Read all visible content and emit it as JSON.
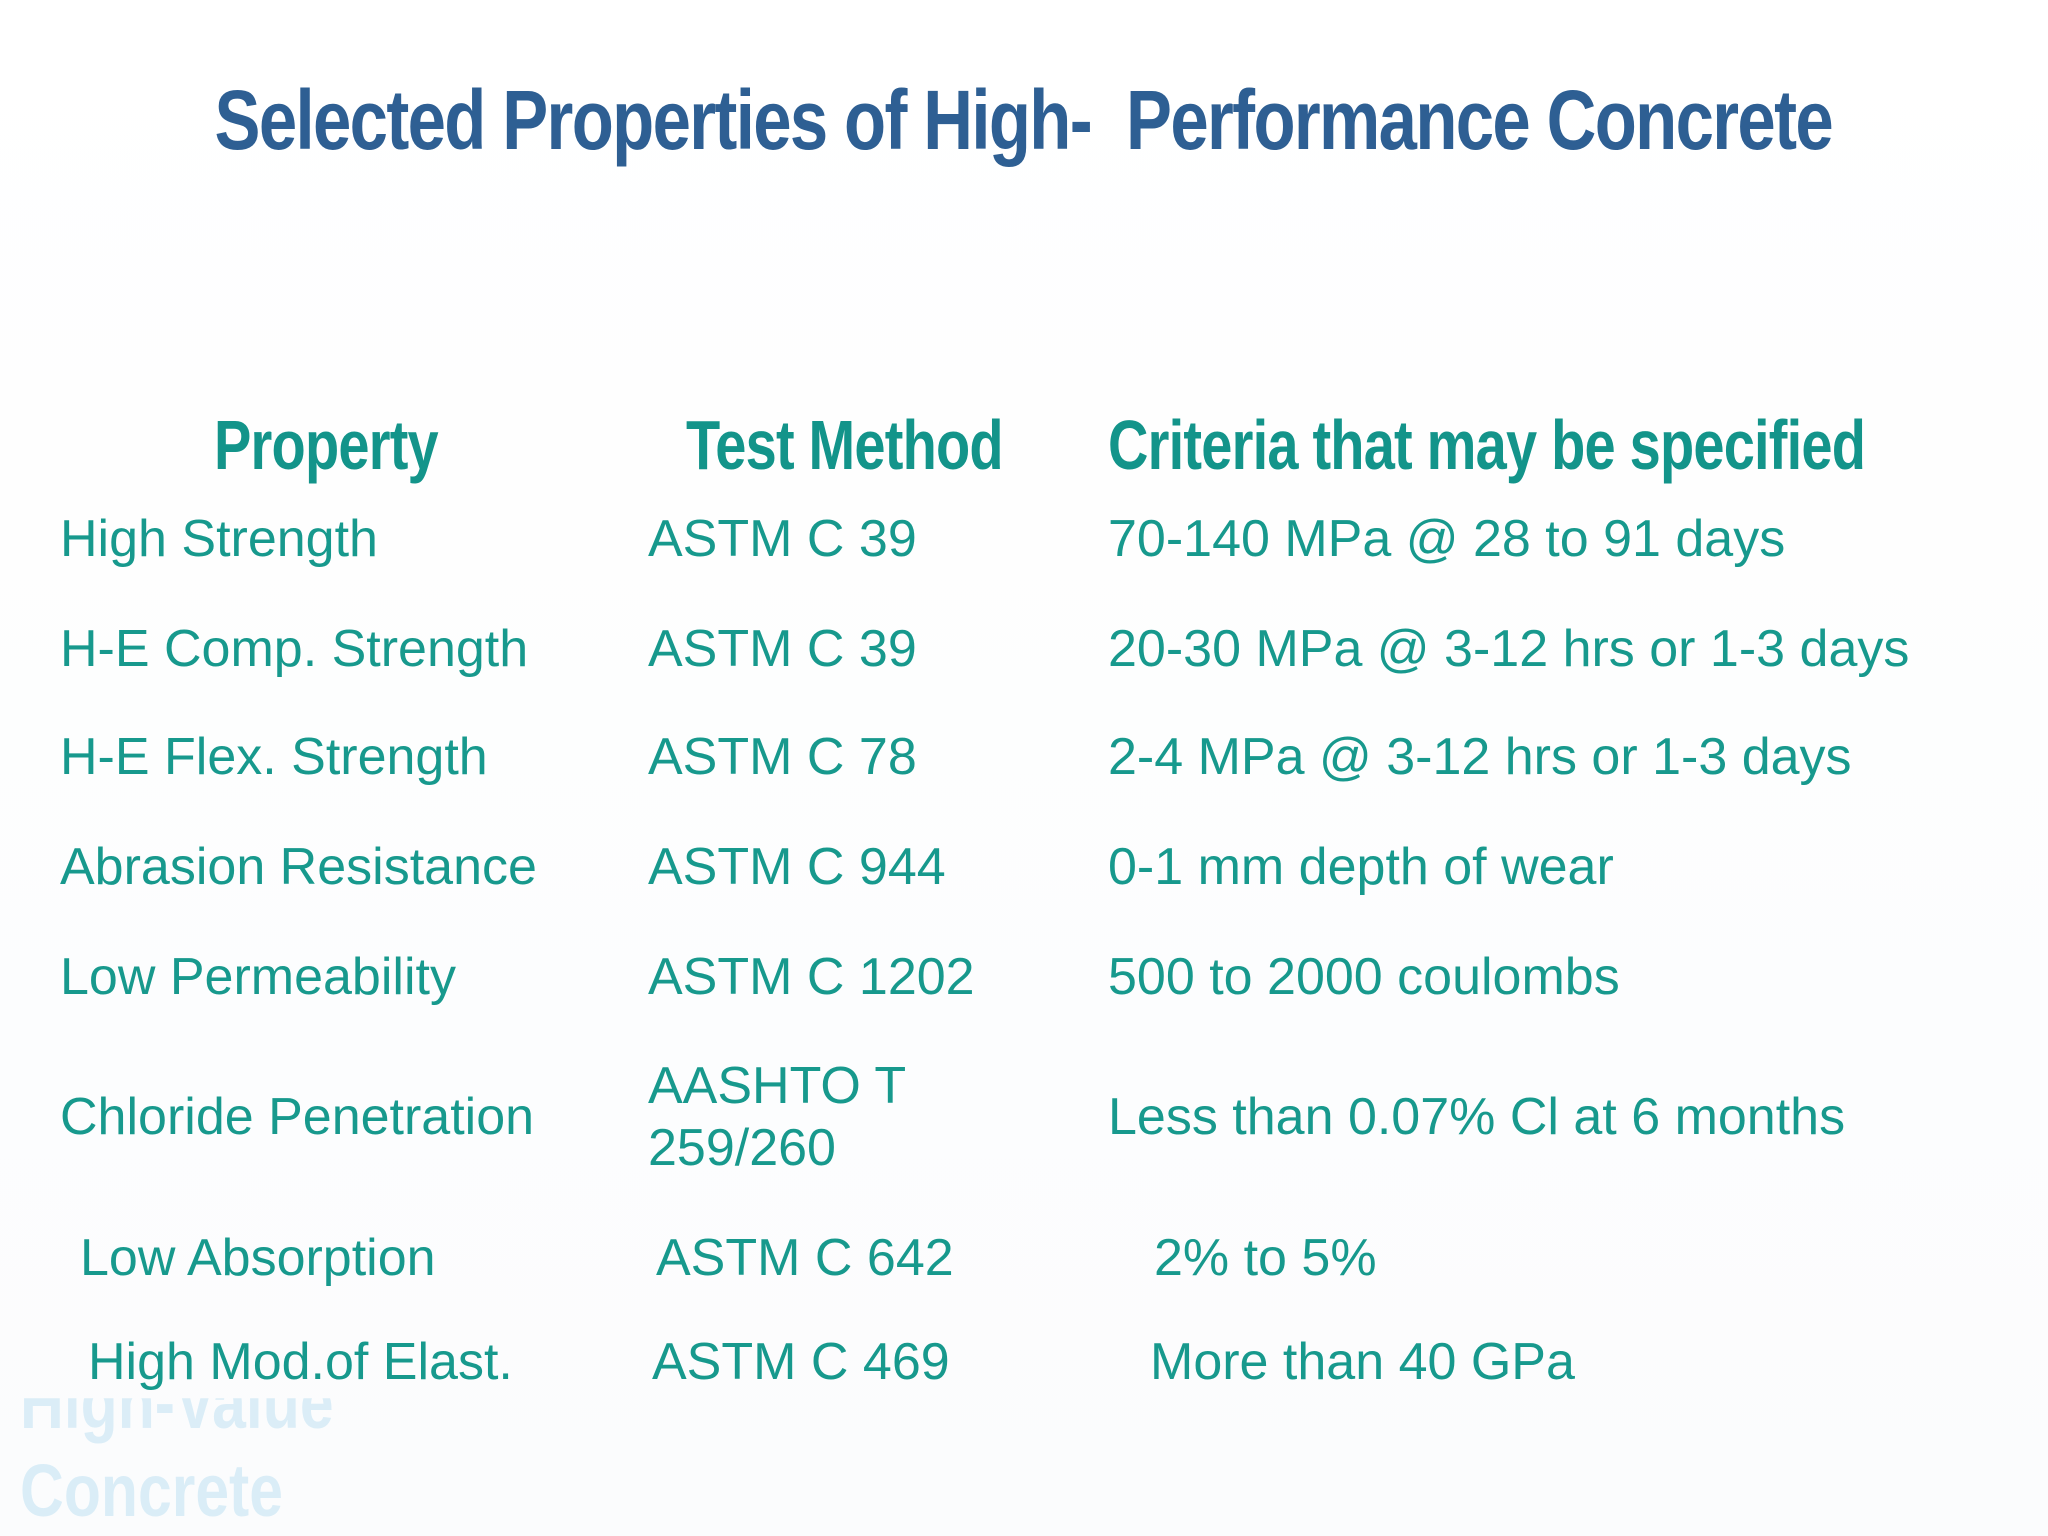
{
  "title": "Selected Properties of High-  Performance Concrete",
  "table": {
    "headers": [
      "Property",
      "Test Method",
      "Criteria that may be specified"
    ],
    "rows": [
      [
        "High Strength",
        "ASTM C 39",
        "70-140 MPa @ 28 to 91 days"
      ],
      [
        "H-E Comp. Strength",
        "ASTM C 39",
        "20-30 MPa @ 3-12 hrs or 1-3 days"
      ],
      [
        "H-E Flex. Strength",
        "ASTM C 78",
        "2-4 MPa @ 3-12 hrs or 1-3 days"
      ],
      [
        "Abrasion Resistance",
        "ASTM C 944",
        "0-1 mm depth of wear"
      ],
      [
        "Low Permeability",
        "ASTM C 1202",
        "500 to 2000 coulombs"
      ],
      [
        "Chloride Penetration",
        "AASHTO T 259/260",
        "Less than 0.07% Cl at 6 months"
      ],
      [
        "Low Absorption",
        "ASTM C 642",
        "2% to 5%"
      ],
      [
        "High Mod.of Elast.",
        "ASTM C 469",
        "More than 40 GPa"
      ]
    ]
  },
  "watermark": [
    "High-Value",
    "Concrete"
  ]
}
